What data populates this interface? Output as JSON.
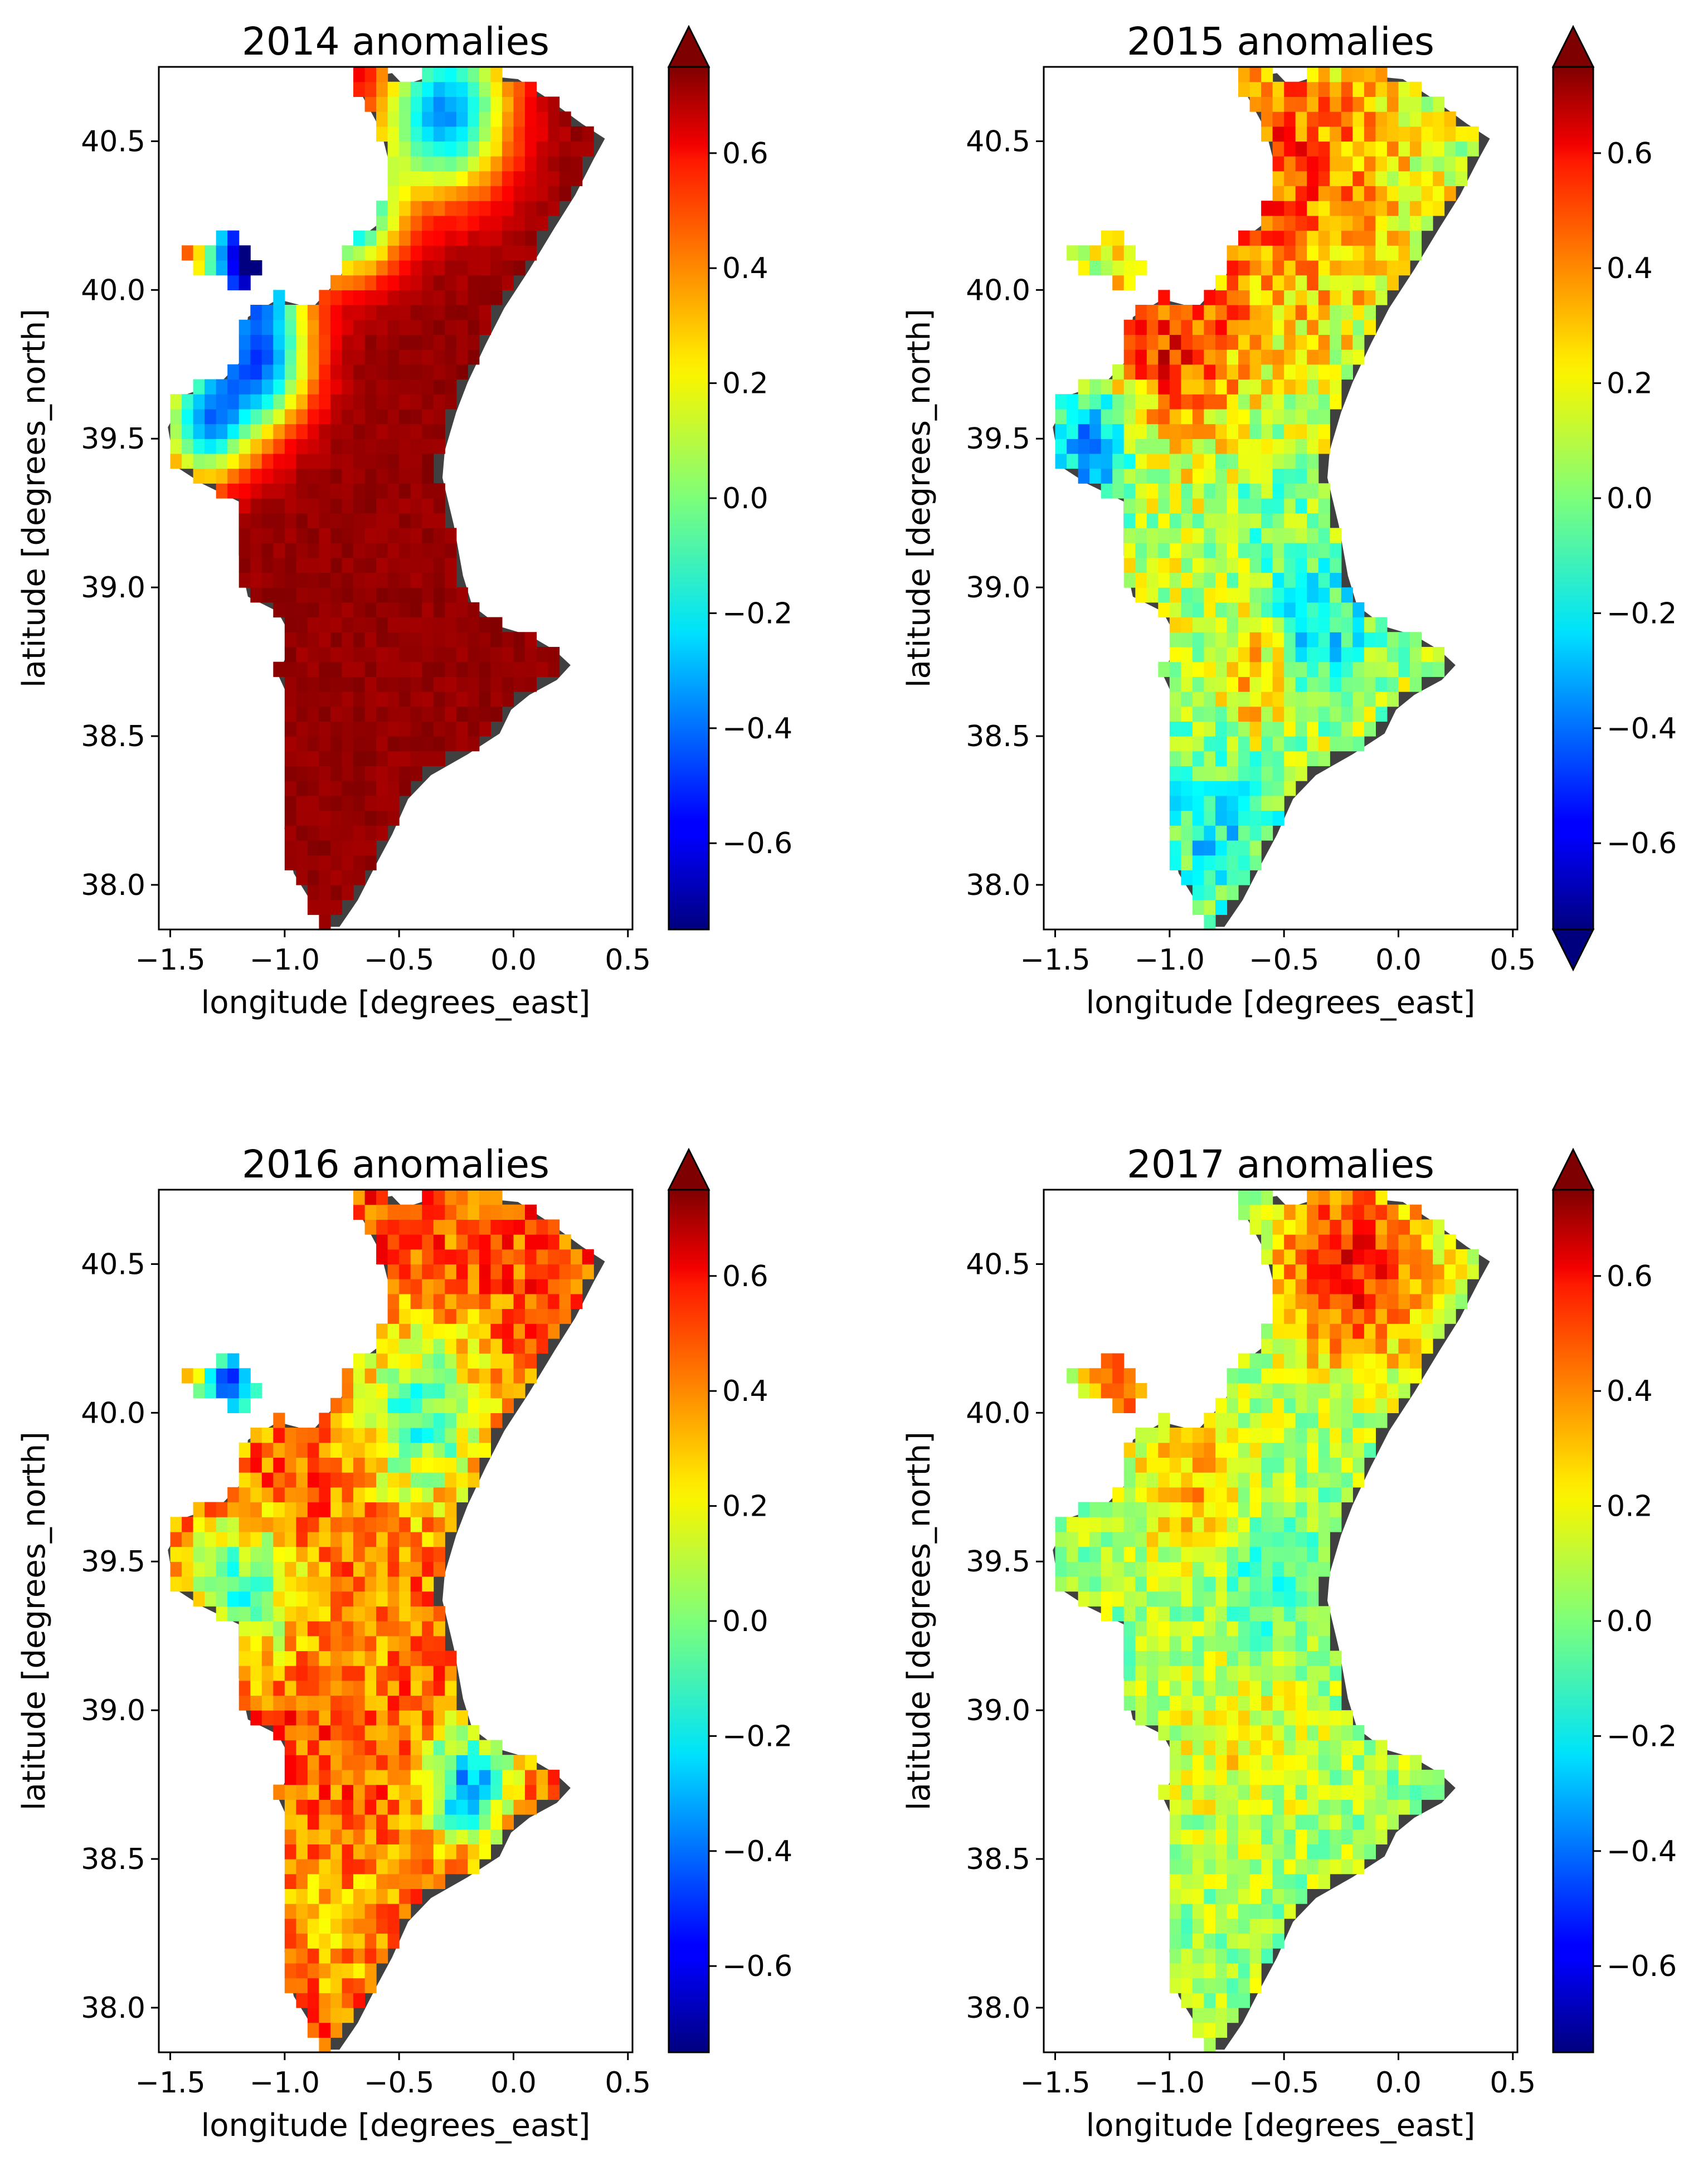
{
  "figure": {
    "background": "#ffffff",
    "colormap": "jet",
    "land_shadow_color": "#404040"
  },
  "chart_data": [
    {
      "type": "heatmap",
      "title": "2014 anomalies",
      "xlabel": "longitude [degrees_east]",
      "ylabel": "latitude [degrees_north]",
      "xlim": [
        -1.55,
        0.52
      ],
      "ylim": [
        37.85,
        40.75
      ],
      "xticks": [
        -1.5,
        -1.0,
        -0.5,
        0.0,
        0.5
      ],
      "xtick_labels": [
        "−1.5",
        "−1.0",
        "−0.5",
        "0.0",
        "0.5"
      ],
      "yticks": [
        38.0,
        38.5,
        39.0,
        39.5,
        40.0,
        40.5
      ],
      "ytick_labels": [
        "38.0",
        "38.5",
        "39.0",
        "39.5",
        "40.0",
        "40.5"
      ],
      "colorbar": {
        "vmin": -0.75,
        "vmax": 0.75,
        "extend_max": true,
        "extend_min": false,
        "ticks": [
          -0.6,
          -0.4,
          -0.2,
          0.0,
          0.2,
          0.4,
          0.6
        ],
        "tick_labels": [
          "−0.6",
          "−0.4",
          "−0.2",
          "0.0",
          "0.2",
          "0.4",
          "0.6"
        ]
      },
      "grid": false,
      "field": {
        "base": 0.72,
        "noise": 0.03,
        "blobs": [
          {
            "lon": -0.3,
            "lat": 40.6,
            "r": 0.28,
            "v": -0.35
          },
          {
            "lon": -0.7,
            "lat": 40.25,
            "r": 0.2,
            "v": -0.25
          },
          {
            "lon": -1.1,
            "lat": 39.75,
            "r": 0.22,
            "v": -0.3
          },
          {
            "lon": -1.35,
            "lat": 39.55,
            "r": 0.2,
            "v": -0.25
          },
          {
            "lon": -1.15,
            "lat": 40.12,
            "r": 0.22,
            "v": -0.7
          }
        ]
      }
    },
    {
      "type": "heatmap",
      "title": "2015 anomalies",
      "xlabel": "longitude [degrees_east]",
      "ylabel": "latitude [degrees_north]",
      "xlim": [
        -1.55,
        0.52
      ],
      "ylim": [
        37.85,
        40.75
      ],
      "xticks": [
        -1.5,
        -1.0,
        -0.5,
        0.0,
        0.5
      ],
      "xtick_labels": [
        "−1.5",
        "−1.0",
        "−0.5",
        "0.0",
        "0.5"
      ],
      "yticks": [
        38.0,
        38.5,
        39.0,
        39.5,
        40.0,
        40.5
      ],
      "ytick_labels": [
        "38.0",
        "38.5",
        "39.0",
        "39.5",
        "40.0",
        "40.5"
      ],
      "colorbar": {
        "vmin": -0.75,
        "vmax": 0.75,
        "extend_max": true,
        "extend_min": true,
        "ticks": [
          -0.6,
          -0.4,
          -0.2,
          0.0,
          0.2,
          0.4,
          0.6
        ],
        "tick_labels": [
          "−0.6",
          "−0.4",
          "−0.2",
          "0.0",
          "0.2",
          "0.4",
          "0.6"
        ]
      },
      "grid": false,
      "field": {
        "base": 0.1,
        "noise": 0.18,
        "blobs": [
          {
            "lon": -0.5,
            "lat": 40.4,
            "r": 0.5,
            "v": 0.45
          },
          {
            "lon": -1.0,
            "lat": 39.8,
            "r": 0.3,
            "v": 0.5
          },
          {
            "lon": -1.35,
            "lat": 39.5,
            "r": 0.22,
            "v": -0.35
          },
          {
            "lon": -0.55,
            "lat": 39.3,
            "r": 0.25,
            "v": 0.0
          },
          {
            "lon": -0.35,
            "lat": 38.85,
            "r": 0.25,
            "v": -0.25
          },
          {
            "lon": -0.8,
            "lat": 38.2,
            "r": 0.3,
            "v": -0.2
          },
          {
            "lon": -0.6,
            "lat": 38.7,
            "r": 0.18,
            "v": 0.4
          }
        ]
      }
    },
    {
      "type": "heatmap",
      "title": "2016 anomalies",
      "xlabel": "longitude [degrees_east]",
      "ylabel": "latitude [degrees_north]",
      "xlim": [
        -1.55,
        0.52
      ],
      "ylim": [
        37.85,
        40.75
      ],
      "xticks": [
        -1.5,
        -1.0,
        -0.5,
        0.0,
        0.5
      ],
      "xtick_labels": [
        "−1.5",
        "−1.0",
        "−0.5",
        "0.0",
        "0.5"
      ],
      "yticks": [
        38.0,
        38.5,
        39.0,
        39.5,
        40.0,
        40.5
      ],
      "ytick_labels": [
        "38.0",
        "38.5",
        "39.0",
        "39.5",
        "40.0",
        "40.5"
      ],
      "colorbar": {
        "vmin": -0.75,
        "vmax": 0.75,
        "extend_max": true,
        "extend_min": false,
        "ticks": [
          -0.6,
          -0.4,
          -0.2,
          0.0,
          0.2,
          0.4,
          0.6
        ],
        "tick_labels": [
          "−0.6",
          "−0.4",
          "−0.2",
          "0.0",
          "0.2",
          "0.4",
          "0.6"
        ]
      },
      "grid": false,
      "field": {
        "base": 0.45,
        "noise": 0.16,
        "blobs": [
          {
            "lon": -0.6,
            "lat": 39.3,
            "r": 0.28,
            "v": 0.35
          },
          {
            "lon": -0.75,
            "lat": 38.3,
            "r": 0.3,
            "v": 0.3
          },
          {
            "lon": -0.2,
            "lat": 38.75,
            "r": 0.2,
            "v": -0.3
          },
          {
            "lon": -1.2,
            "lat": 39.4,
            "r": 0.25,
            "v": -0.1
          },
          {
            "lon": -1.25,
            "lat": 40.1,
            "r": 0.15,
            "v": -0.4
          },
          {
            "lon": -0.4,
            "lat": 40.0,
            "r": 0.3,
            "v": -0.1
          }
        ]
      }
    },
    {
      "type": "heatmap",
      "title": "2017 anomalies",
      "xlabel": "longitude [degrees_east]",
      "ylabel": "latitude [degrees_north]",
      "xlim": [
        -1.55,
        0.52
      ],
      "ylim": [
        37.85,
        40.75
      ],
      "xticks": [
        -1.5,
        -1.0,
        -0.5,
        0.0,
        0.5
      ],
      "xtick_labels": [
        "−1.5",
        "−1.0",
        "−0.5",
        "0.0",
        "0.5"
      ],
      "yticks": [
        38.0,
        38.5,
        39.0,
        39.5,
        40.0,
        40.5
      ],
      "ytick_labels": [
        "38.0",
        "38.5",
        "39.0",
        "39.5",
        "40.0",
        "40.5"
      ],
      "colorbar": {
        "vmin": -0.75,
        "vmax": 0.75,
        "extend_max": true,
        "extend_min": false,
        "ticks": [
          -0.6,
          -0.4,
          -0.2,
          0.0,
          0.2,
          0.4,
          0.6
        ],
        "tick_labels": [
          "−0.6",
          "−0.4",
          "−0.2",
          "0.0",
          "0.2",
          "0.4",
          "0.6"
        ]
      },
      "grid": false,
      "field": {
        "base": 0.05,
        "noise": 0.14,
        "blobs": [
          {
            "lon": -0.2,
            "lat": 40.5,
            "r": 0.35,
            "v": 0.55
          },
          {
            "lon": -1.2,
            "lat": 40.1,
            "r": 0.15,
            "v": 0.5
          },
          {
            "lon": -0.9,
            "lat": 39.75,
            "r": 0.25,
            "v": 0.3
          },
          {
            "lon": -0.7,
            "lat": 38.9,
            "r": 0.3,
            "v": 0.2
          },
          {
            "lon": -0.55,
            "lat": 39.45,
            "r": 0.22,
            "v": -0.15
          }
        ]
      }
    }
  ]
}
